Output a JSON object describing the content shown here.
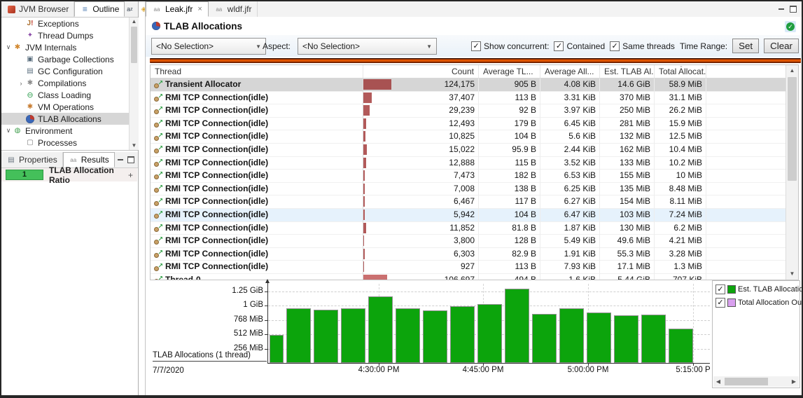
{
  "left_panel": {
    "tabs": [
      {
        "label": "JVM Browser",
        "icon": "jvm-browser-icon",
        "active": false
      },
      {
        "label": "Outline",
        "icon": "outline-icon",
        "active": true
      }
    ],
    "toolbar_icons": [
      "sort-icon",
      "flag-icon",
      "view-menu-icon",
      "minimize-icon",
      "maximize-icon"
    ],
    "tree": {
      "items": [
        {
          "label": "Exceptions",
          "icon": "exceptions-icon",
          "indent": 2,
          "chevron": ""
        },
        {
          "label": "Thread Dumps",
          "icon": "thread-dumps-icon",
          "indent": 2,
          "chevron": ""
        },
        {
          "label": "JVM Internals",
          "icon": "jvm-internals-icon",
          "indent": 1,
          "chevron": "expanded"
        },
        {
          "label": "Garbage Collections",
          "icon": "garbage-collections-icon",
          "indent": 2,
          "chevron": ""
        },
        {
          "label": "GC Configuration",
          "icon": "gc-configuration-icon",
          "indent": 2,
          "chevron": ""
        },
        {
          "label": "Compilations",
          "icon": "compilations-icon",
          "indent": 2,
          "chevron": "collapsed"
        },
        {
          "label": "Class Loading",
          "icon": "class-loading-icon",
          "indent": 2,
          "chevron": ""
        },
        {
          "label": "VM Operations",
          "icon": "vm-operations-icon",
          "indent": 2,
          "chevron": ""
        },
        {
          "label": "TLAB Allocations",
          "icon": "tlab-allocations-icon",
          "indent": 2,
          "chevron": "",
          "selected": true
        },
        {
          "label": "Environment",
          "icon": "environment-icon",
          "indent": 1,
          "chevron": "expanded"
        },
        {
          "label": "Processes",
          "icon": "processes-icon",
          "indent": 2,
          "chevron": ""
        }
      ]
    },
    "props_tabs": [
      {
        "label": "Properties",
        "icon": "properties-icon",
        "active": false
      },
      {
        "label": "Results",
        "icon": "results-icon",
        "active": true
      }
    ],
    "results_row": {
      "badge": "1",
      "label": "TLAB Allocation Ratio",
      "add_button": "+"
    }
  },
  "main": {
    "editor_tabs": [
      {
        "label": "Leak.jfr",
        "icon": "jfr-file-icon",
        "active": true,
        "closable": true
      },
      {
        "label": "wldf.jfr",
        "icon": "jfr-file-icon",
        "active": false,
        "closable": false
      }
    ],
    "page_title": "TLAB Allocations",
    "controls": {
      "thread_filter_combo": {
        "value": "<No Selection>"
      },
      "aspect_label": "Aspect:",
      "aspect_combo": {
        "value": "<No Selection>"
      },
      "checkboxes": [
        {
          "label": "Show concurrent:",
          "checked": true
        },
        {
          "label": "Contained",
          "checked": true
        },
        {
          "label": "Same threads",
          "checked": true
        }
      ],
      "time_range_label": "Time Range:",
      "set_button": "Set",
      "clear_button": "Clear"
    },
    "table": {
      "columns": [
        {
          "label": "Thread"
        },
        {
          "label": "Count"
        },
        {
          "label": "Average TL..."
        },
        {
          "label": "Average All..."
        },
        {
          "label": "Est. TLAB Al..."
        },
        {
          "label": "Total Allocat...",
          "sort": "desc"
        }
      ],
      "rows": [
        {
          "thread": "Transient Allocator",
          "count": "124,175",
          "avg_tlab": "905 B",
          "avg_alloc": "4.08 KiB",
          "est_tlab": "14.6 GiB",
          "total_alloc": "58.9 MiB",
          "state": "selected",
          "bar_color": "#a85252"
        },
        {
          "thread": "RMI TCP Connection(idle)",
          "count": "37,407",
          "avg_tlab": "113 B",
          "avg_alloc": "3.31 KiB",
          "est_tlab": "370 MiB",
          "total_alloc": "31.1 MiB",
          "state": ""
        },
        {
          "thread": "RMI TCP Connection(idle)",
          "count": "29,239",
          "avg_tlab": "92 B",
          "avg_alloc": "3.97 KiB",
          "est_tlab": "250 MiB",
          "total_alloc": "26.2 MiB",
          "state": ""
        },
        {
          "thread": "RMI TCP Connection(idle)",
          "count": "12,493",
          "avg_tlab": "179 B",
          "avg_alloc": "6.45 KiB",
          "est_tlab": "281 MiB",
          "total_alloc": "15.9 MiB",
          "state": ""
        },
        {
          "thread": "RMI TCP Connection(idle)",
          "count": "10,825",
          "avg_tlab": "104 B",
          "avg_alloc": "5.6 KiB",
          "est_tlab": "132 MiB",
          "total_alloc": "12.5 MiB",
          "state": ""
        },
        {
          "thread": "RMI TCP Connection(idle)",
          "count": "15,022",
          "avg_tlab": "95.9 B",
          "avg_alloc": "2.44 KiB",
          "est_tlab": "162 MiB",
          "total_alloc": "10.4 MiB",
          "state": ""
        },
        {
          "thread": "RMI TCP Connection(idle)",
          "count": "12,888",
          "avg_tlab": "115 B",
          "avg_alloc": "3.52 KiB",
          "est_tlab": "133 MiB",
          "total_alloc": "10.2 MiB",
          "state": ""
        },
        {
          "thread": "RMI TCP Connection(idle)",
          "count": "7,473",
          "avg_tlab": "182 B",
          "avg_alloc": "6.53 KiB",
          "est_tlab": "155 MiB",
          "total_alloc": "10 MiB",
          "state": ""
        },
        {
          "thread": "RMI TCP Connection(idle)",
          "count": "7,008",
          "avg_tlab": "138 B",
          "avg_alloc": "6.25 KiB",
          "est_tlab": "135 MiB",
          "total_alloc": "8.48 MiB",
          "state": ""
        },
        {
          "thread": "RMI TCP Connection(idle)",
          "count": "6,467",
          "avg_tlab": "117 B",
          "avg_alloc": "6.27 KiB",
          "est_tlab": "154 MiB",
          "total_alloc": "8.11 MiB",
          "state": ""
        },
        {
          "thread": "RMI TCP Connection(idle)",
          "count": "5,942",
          "avg_tlab": "104 B",
          "avg_alloc": "6.47 KiB",
          "est_tlab": "103 MiB",
          "total_alloc": "7.24 MiB",
          "state": "hover"
        },
        {
          "thread": "RMI TCP Connection(idle)",
          "count": "11,852",
          "avg_tlab": "81.8 B",
          "avg_alloc": "1.87 KiB",
          "est_tlab": "130 MiB",
          "total_alloc": "6.2 MiB",
          "state": ""
        },
        {
          "thread": "RMI TCP Connection(idle)",
          "count": "3,800",
          "avg_tlab": "128 B",
          "avg_alloc": "5.49 KiB",
          "est_tlab": "49.6 MiB",
          "total_alloc": "4.21 MiB",
          "state": ""
        },
        {
          "thread": "RMI TCP Connection(idle)",
          "count": "6,303",
          "avg_tlab": "82.9 B",
          "avg_alloc": "1.91 KiB",
          "est_tlab": "55.3 MiB",
          "total_alloc": "3.28 MiB",
          "state": ""
        },
        {
          "thread": "RMI TCP Connection(idle)",
          "count": "927",
          "avg_tlab": "113 B",
          "avg_alloc": "7.93 KiB",
          "est_tlab": "17.1 MiB",
          "total_alloc": "1.3 MiB",
          "state": ""
        },
        {
          "thread": "Thread-0",
          "count": "106,697",
          "avg_tlab": "494 B",
          "avg_alloc": "1.6 KiB",
          "est_tlab": "5.44 GiB",
          "total_alloc": "707 KiB",
          "state": "",
          "bar_color": "#ca7070"
        }
      ]
    }
  },
  "chart_data": {
    "type": "bar",
    "title": "TLAB Allocations (1 thread)",
    "date_label": "7/7/2020",
    "series": [
      {
        "name": "Est. TLAB Allocation",
        "color": "#0ca40c",
        "values_mib": [
          500,
          970,
          950,
          970,
          1190,
          970,
          940,
          1010,
          1050,
          1320,
          880,
          970,
          905,
          855,
          860,
          610
        ]
      }
    ],
    "y_ticks": [
      {
        "label": "1.25 GiB",
        "mib": 1280
      },
      {
        "label": "1 GiB",
        "mib": 1024
      },
      {
        "label": "768 MiB",
        "mib": 768
      },
      {
        "label": "512 MiB",
        "mib": 512
      },
      {
        "label": "256 MiB",
        "mib": 256
      }
    ],
    "ylim_mib": [
      0,
      1400
    ],
    "x_ticks": [
      "4:30:00 PM",
      "4:45:00 PM",
      "5:00:00 PM",
      "5:15:00 P"
    ],
    "grid": "dashed"
  },
  "legend": {
    "items": [
      {
        "label": "Est. TLAB Allocation",
        "checked": true,
        "color": "#0ca40c"
      },
      {
        "label": "Total Allocation Outs",
        "checked": true,
        "color": "#d9a0ef"
      }
    ]
  },
  "colors": {
    "count_bar": "#b25a5a",
    "selection_bg": "#d6d6d6",
    "hover_bg": "#e6f2fc",
    "divider_orange": "#e05400",
    "results_badge": "#44c05a"
  }
}
